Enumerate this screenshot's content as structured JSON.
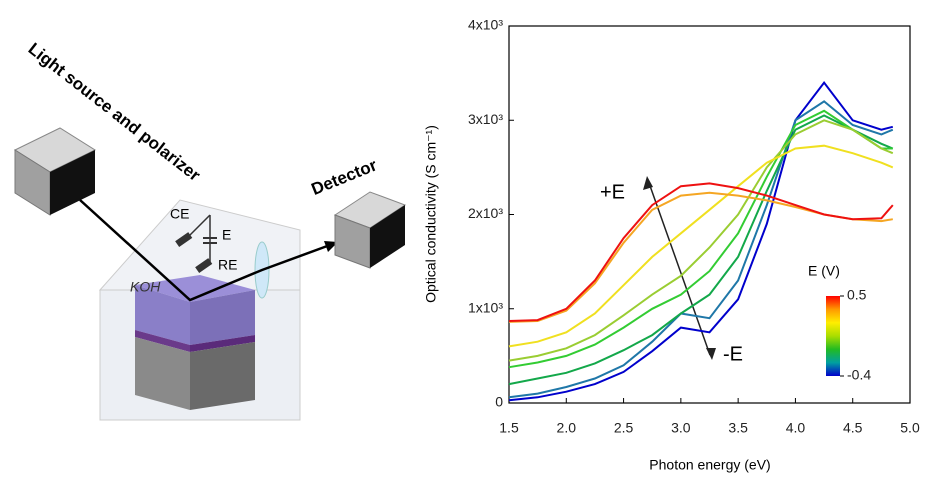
{
  "diagram": {
    "source_label": "Light source and polarizer",
    "detector_label": "Detector",
    "electrodes": [
      "CE",
      "E",
      "RE"
    ],
    "electrolyte": "KOH"
  },
  "chart_data": {
    "type": "line",
    "xlabel": "Photon energy (eV)",
    "ylabel": "Optical conductivity (S cm⁻¹)",
    "x": [
      1.5,
      1.75,
      2.0,
      2.25,
      2.5,
      2.75,
      3.0,
      3.25,
      3.5,
      3.75,
      4.0,
      4.25,
      4.5,
      4.75,
      4.85
    ],
    "series": [
      {
        "color": "#0000cc",
        "values": [
          30,
          60,
          120,
          200,
          330,
          550,
          800,
          750,
          1100,
          1900,
          3000,
          3400,
          3000,
          2900,
          2930
        ]
      },
      {
        "color": "#1f77a8",
        "values": [
          60,
          100,
          170,
          260,
          400,
          650,
          950,
          900,
          1300,
          2100,
          3000,
          3200,
          2950,
          2850,
          2900
        ]
      },
      {
        "color": "#13a84a",
        "values": [
          200,
          260,
          320,
          420,
          560,
          720,
          950,
          1150,
          1550,
          2250,
          2900,
          3050,
          2900,
          2750,
          2700
        ]
      },
      {
        "color": "#33cc33",
        "values": [
          380,
          430,
          500,
          620,
          800,
          1000,
          1150,
          1400,
          1800,
          2400,
          2950,
          3100,
          2900,
          2700,
          2700
        ]
      },
      {
        "color": "#9acd32",
        "values": [
          450,
          500,
          580,
          720,
          930,
          1150,
          1350,
          1650,
          2000,
          2500,
          2850,
          3000,
          2900,
          2700,
          2650
        ]
      },
      {
        "color": "#f0e020",
        "values": [
          600,
          650,
          750,
          950,
          1250,
          1550,
          1800,
          2050,
          2300,
          2550,
          2700,
          2730,
          2650,
          2550,
          2500
        ]
      },
      {
        "color": "#f5a623",
        "values": [
          860,
          870,
          980,
          1270,
          1700,
          2050,
          2200,
          2230,
          2200,
          2150,
          2080,
          2000,
          1950,
          1930,
          1950
        ]
      },
      {
        "color": "#ee1111",
        "values": [
          870,
          880,
          1000,
          1300,
          1750,
          2100,
          2300,
          2330,
          2280,
          2200,
          2100,
          2000,
          1950,
          1960,
          2100
        ]
      }
    ],
    "xlim": [
      1.5,
      5.0
    ],
    "xticks": [
      1.5,
      {
        "value": 2.0,
        "label": "2.0"
      },
      2.5,
      {
        "value": 3.0,
        "label": "3.0"
      },
      3.5,
      {
        "value": 4.0,
        "label": "4.0"
      },
      4.5,
      {
        "value": 5.0,
        "label": "5.0"
      }
    ],
    "ylim": [
      0,
      4000
    ],
    "yticks": [
      0,
      {
        "value": 1000,
        "label": "1x10³"
      },
      {
        "value": 2000,
        "label": "2x10³"
      },
      {
        "value": 3000,
        "label": "3x10³"
      },
      {
        "value": 4000,
        "label": "4x10³"
      }
    ],
    "annotations": [
      "+E",
      "-E"
    ],
    "colorbar": {
      "title": "E (V)",
      "clim": [
        -0.4,
        0.5
      ],
      "ticks": [
        0.5,
        -0.4
      ],
      "colormap": [
        "#0000cc",
        "#00a0a0",
        "#22bb22",
        "#aadd00",
        "#ffee00",
        "#ff9900",
        "#ff0000"
      ]
    }
  }
}
